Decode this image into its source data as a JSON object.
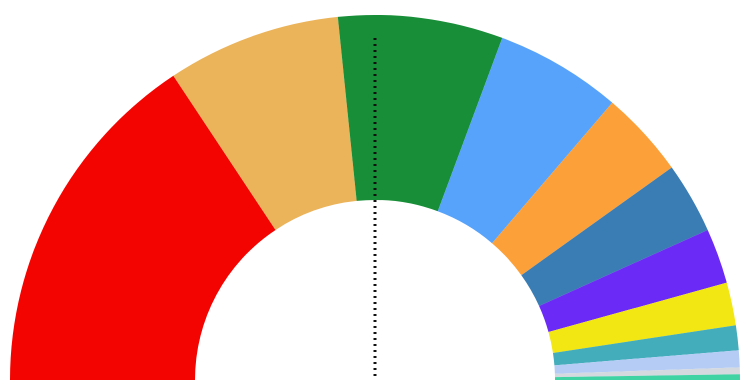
{
  "chart_data": {
    "type": "half-donut",
    "values": [
      31.4,
      15.4,
      14.6,
      11.2,
      7.7,
      6.3,
      4.9,
      3.8,
      2.2,
      1.5,
      0.6,
      0.5
    ],
    "colors": [
      "#f40400",
      "#ebb35a",
      "#178e37",
      "#57a3fb",
      "#fca13a",
      "#3a7db5",
      "#6b2af5",
      "#f2e613",
      "#43adbb",
      "#b5cdf5",
      "#d4d9e0",
      "#3fd3a4"
    ]
  }
}
